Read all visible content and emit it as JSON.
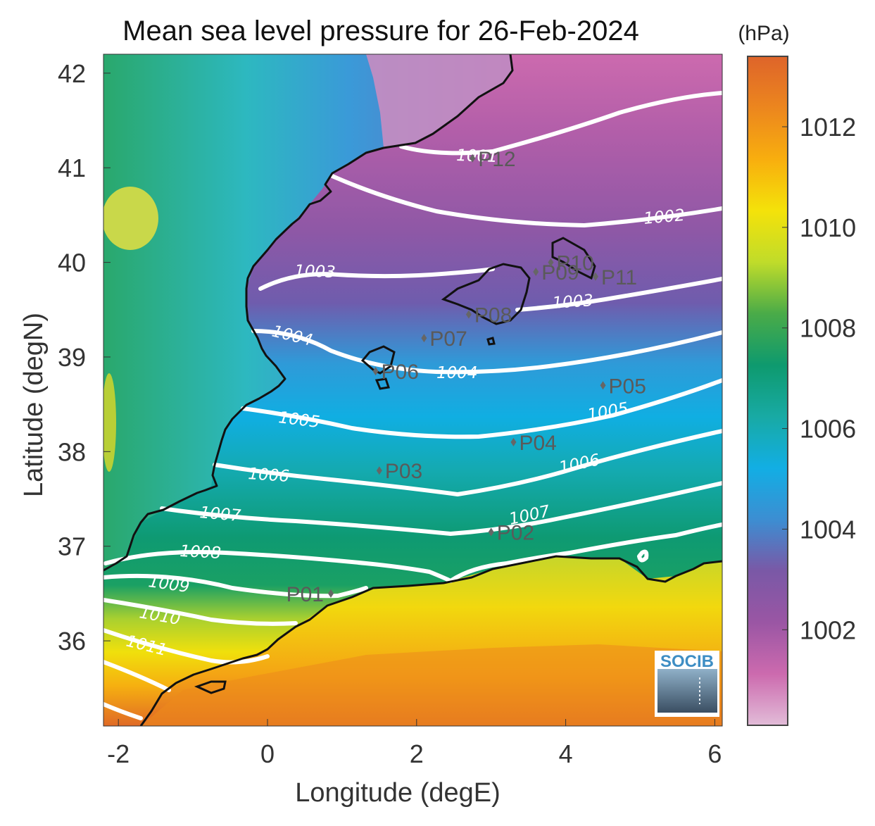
{
  "title": "Mean sea level pressure for 26-Feb-2024",
  "map": {
    "xlabel": "Longitude (degE)",
    "ylabel": "Latitude (degN)",
    "lon_range": [
      -2.2,
      6.1
    ],
    "lat_range": [
      35.1,
      42.2
    ],
    "lon_ticks": [
      -2,
      0,
      2,
      4,
      6
    ],
    "lat_ticks": [
      36,
      37,
      38,
      39,
      40,
      41,
      42
    ],
    "contour_labels": [
      "1001",
      "1002",
      "1003",
      "1003",
      "1004",
      "1004",
      "1005",
      "1005",
      "1006",
      "1006",
      "1007",
      "1007",
      "1008",
      "1009",
      "1010",
      "1011"
    ],
    "points": [
      {
        "name": "P01",
        "lon": 0.85,
        "lat": 36.5
      },
      {
        "name": "P02",
        "lon": 3.0,
        "lat": 37.15
      },
      {
        "name": "P03",
        "lon": 1.5,
        "lat": 37.8
      },
      {
        "name": "P04",
        "lon": 3.3,
        "lat": 38.1
      },
      {
        "name": "P05",
        "lon": 4.5,
        "lat": 38.7
      },
      {
        "name": "P06",
        "lon": 1.45,
        "lat": 38.85
      },
      {
        "name": "P07",
        "lon": 2.1,
        "lat": 39.2
      },
      {
        "name": "P08",
        "lon": 2.7,
        "lat": 39.45
      },
      {
        "name": "P09",
        "lon": 3.6,
        "lat": 39.9
      },
      {
        "name": "P10",
        "lon": 3.8,
        "lat": 40.0
      },
      {
        "name": "P11",
        "lon": 4.4,
        "lat": 39.85
      },
      {
        "name": "P12",
        "lon": 2.75,
        "lat": 41.1
      }
    ],
    "logo": "SOCIB"
  },
  "colorbar": {
    "unit": "(hPa)",
    "range": [
      1000.1,
      1013.4
    ],
    "ticks": [
      "1002",
      "1004",
      "1006",
      "1008",
      "1010",
      "1012"
    ],
    "colors": [
      "#e2bcd8",
      "#cc6aae",
      "#9a56a4",
      "#7a58a6",
      "#3c8ed2",
      "#12aee4",
      "#18aaa4",
      "#0e9a6e",
      "#4aab48",
      "#c0dc2a",
      "#f4e20a",
      "#f8ae0e",
      "#ec861e",
      "#de642a"
    ]
  }
}
